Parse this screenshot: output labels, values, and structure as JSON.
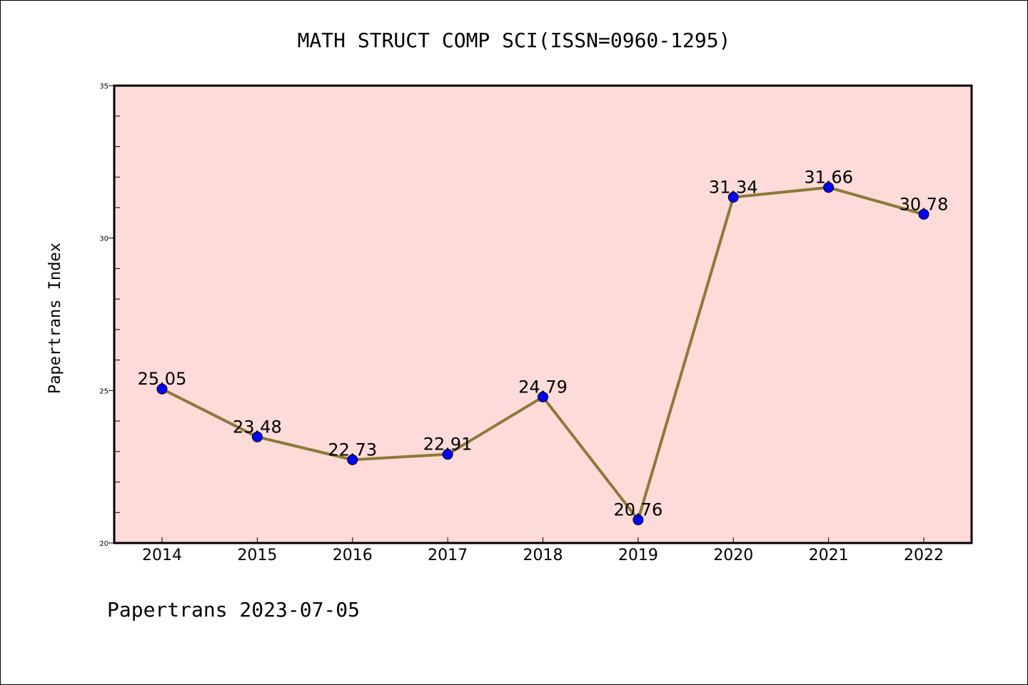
{
  "chart_data": {
    "type": "line",
    "title": "MATH STRUCT COMP SCI(ISSN=0960-1295)",
    "xlabel": "",
    "ylabel": "Papertrans Index",
    "footer": "Papertrans 2023-07-05",
    "categories": [
      "2014",
      "2015",
      "2016",
      "2017",
      "2018",
      "2019",
      "2020",
      "2021",
      "2022"
    ],
    "series": [
      {
        "values": [
          25.05,
          23.48,
          22.73,
          22.91,
          24.79,
          20.76,
          31.34,
          31.66,
          30.78
        ],
        "labels": [
          "25.05",
          "23.48",
          "22.73",
          "22.91",
          "24.79",
          "20.76",
          "31.34",
          "31.66",
          "30.78"
        ]
      }
    ],
    "ylim": [
      20,
      35
    ],
    "yticks": [
      "20",
      "25",
      "30",
      "35"
    ],
    "ytick_values": [
      20,
      25,
      30,
      35
    ],
    "y_minor_step": 1,
    "grid": false,
    "colors": {
      "plot_background": "#fddbd9",
      "line": "#8b7a3a",
      "marker": "#0000ff",
      "marker_edge": "#000000",
      "axis": "#000000"
    }
  }
}
